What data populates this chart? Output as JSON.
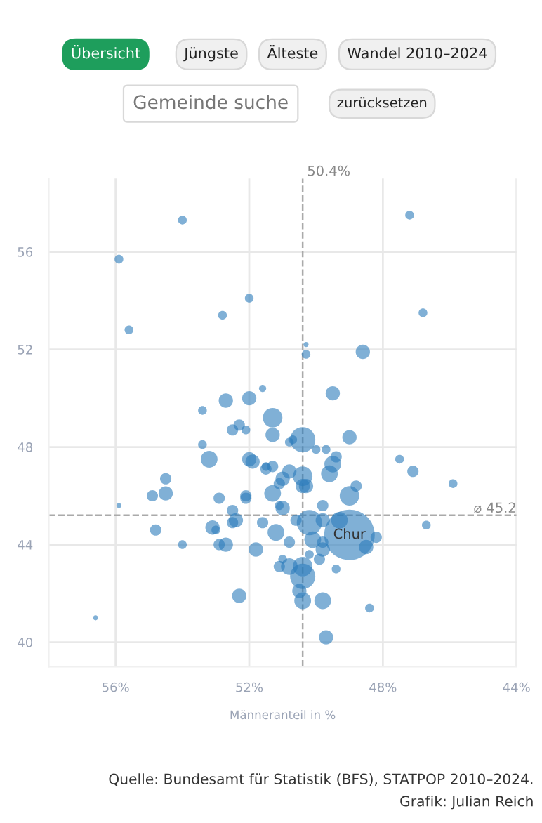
{
  "chart_data": {
    "type": "bubble",
    "xlabel": "Männeranteil in %",
    "xlim": [
      58,
      44
    ],
    "xticks": [
      {
        "value": 56,
        "label": "56%"
      },
      {
        "value": 52,
        "label": "52%"
      },
      {
        "value": 48,
        "label": "48%"
      },
      {
        "value": 44,
        "label": "44%"
      }
    ],
    "ylim": [
      39,
      59
    ],
    "yticks": [
      40,
      44,
      48,
      52,
      56
    ],
    "grid": true,
    "ref_lines": [
      {
        "axis": "x",
        "value": 50.4,
        "label": "50.4%",
        "color": "#aaaaaa",
        "line_style": "dashed"
      },
      {
        "axis": "y",
        "value": 45.2,
        "label": "⌀ 45.2",
        "color": "#aaaaaa",
        "line_style": "dashed"
      }
    ],
    "annotations": [
      "Übersicht",
      "Jüngste",
      "Älteste",
      "Wandel 2010–2024",
      "Gemeinde suche",
      "zurücksetzen",
      {
        "text": "Chur",
        "x": 49.0,
        "y": 44.4
      },
      "Quelle: Bundesamt für Statistik (BFS), STATPOP 2010–2024.",
      "Grafik: Julian Reich"
    ],
    "x": [
      54.0,
      47.2,
      55.9,
      55.6,
      52.0,
      52.8,
      46.8,
      50.3,
      50.3,
      48.6,
      51.6,
      52.7,
      52.0,
      53.4,
      49.5,
      51.3,
      52.5,
      52.1,
      51.3,
      50.4,
      49.0,
      53.4,
      53.2,
      52.0,
      51.5,
      50.8,
      50.8,
      50.7,
      50.0,
      49.7,
      49.4,
      49.5,
      49.6,
      49.0,
      48.8,
      47.5,
      47.1,
      45.9,
      46.7,
      48.4,
      49.7,
      49.8,
      50.4,
      50.5,
      50.4,
      50.4,
      50.8,
      51.1,
      51.0,
      50.2,
      49.9,
      49.4,
      49.8,
      49.8,
      50.1,
      50.2,
      50.6,
      49.8,
      49.3,
      49.0,
      48.5,
      48.2,
      49.8,
      51.0,
      51.1,
      51.2,
      50.8,
      51.8,
      52.7,
      52.9,
      53.1,
      53.0,
      52.5,
      52.4,
      52.5,
      52.9,
      52.1,
      52.1,
      51.3,
      51.6,
      51.0,
      51.1,
      50.4,
      50.3,
      50.4,
      51.3,
      51.5,
      51.9,
      54.5,
      54.9,
      54.5,
      55.9,
      54.8,
      54.0,
      52.3,
      56.6,
      52.3
    ],
    "series": [
      {
        "color": "#2b7bba",
        "values": [
          57.3,
          57.5,
          55.7,
          52.8,
          54.1,
          53.4,
          53.5,
          52.2,
          51.8,
          51.9,
          50.4,
          49.9,
          50.0,
          49.5,
          50.2,
          49.2,
          48.7,
          48.7,
          48.5,
          48.3,
          48.4,
          48.1,
          47.5,
          47.5,
          47.1,
          47.0,
          48.2,
          48.3,
          47.9,
          47.9,
          47.6,
          47.3,
          46.9,
          46.0,
          46.4,
          47.5,
          47.0,
          46.5,
          44.8,
          41.4,
          40.2,
          41.7,
          41.7,
          42.1,
          42.7,
          43.1,
          43.1,
          43.1,
          43.4,
          43.6,
          43.4,
          43.0,
          43.8,
          44.1,
          44.2,
          44.9,
          45.0,
          45.0,
          45.0,
          44.4,
          43.9,
          44.3,
          45.6,
          45.5,
          45.6,
          44.5,
          44.1,
          43.8,
          44.0,
          44.0,
          44.7,
          44.6,
          44.9,
          45.0,
          45.4,
          45.9,
          46.0,
          45.9,
          46.1,
          44.9,
          46.7,
          46.5,
          46.4,
          46.4,
          46.8,
          47.2,
          47.2,
          47.4,
          46.7,
          46.0,
          46.1,
          45.6,
          44.6,
          44.0,
          41.9,
          41.0,
          48.9
        ],
        "sizes": [
          0.03,
          0.03,
          0.03,
          0.03,
          0.03,
          0.03,
          0.03,
          0.01,
          0.03,
          0.08,
          0.02,
          0.08,
          0.08,
          0.03,
          0.08,
          0.15,
          0.05,
          0.03,
          0.08,
          0.25,
          0.08,
          0.03,
          0.11,
          0.08,
          0.05,
          0.08,
          0.03,
          0.03,
          0.03,
          0.03,
          0.05,
          0.11,
          0.11,
          0.15,
          0.05,
          0.03,
          0.05,
          0.03,
          0.03,
          0.03,
          0.08,
          0.11,
          0.11,
          0.08,
          0.25,
          0.15,
          0.11,
          0.05,
          0.03,
          0.03,
          0.05,
          0.03,
          0.08,
          0.05,
          0.11,
          0.25,
          0.05,
          0.08,
          0.11,
          1,
          0.08,
          0.05,
          0.05,
          0.08,
          0.03,
          0.11,
          0.05,
          0.08,
          0.08,
          0.05,
          0.08,
          0.03,
          0.05,
          0.08,
          0.05,
          0.05,
          0.05,
          0.05,
          0.11,
          0.05,
          0.08,
          0.05,
          0.08,
          0.08,
          0.15,
          0.05,
          0.03,
          0.08,
          0.05,
          0.05,
          0.08,
          0.01,
          0.05,
          0.03,
          0.08,
          0.01,
          0.05
        ]
      }
    ]
  }
}
